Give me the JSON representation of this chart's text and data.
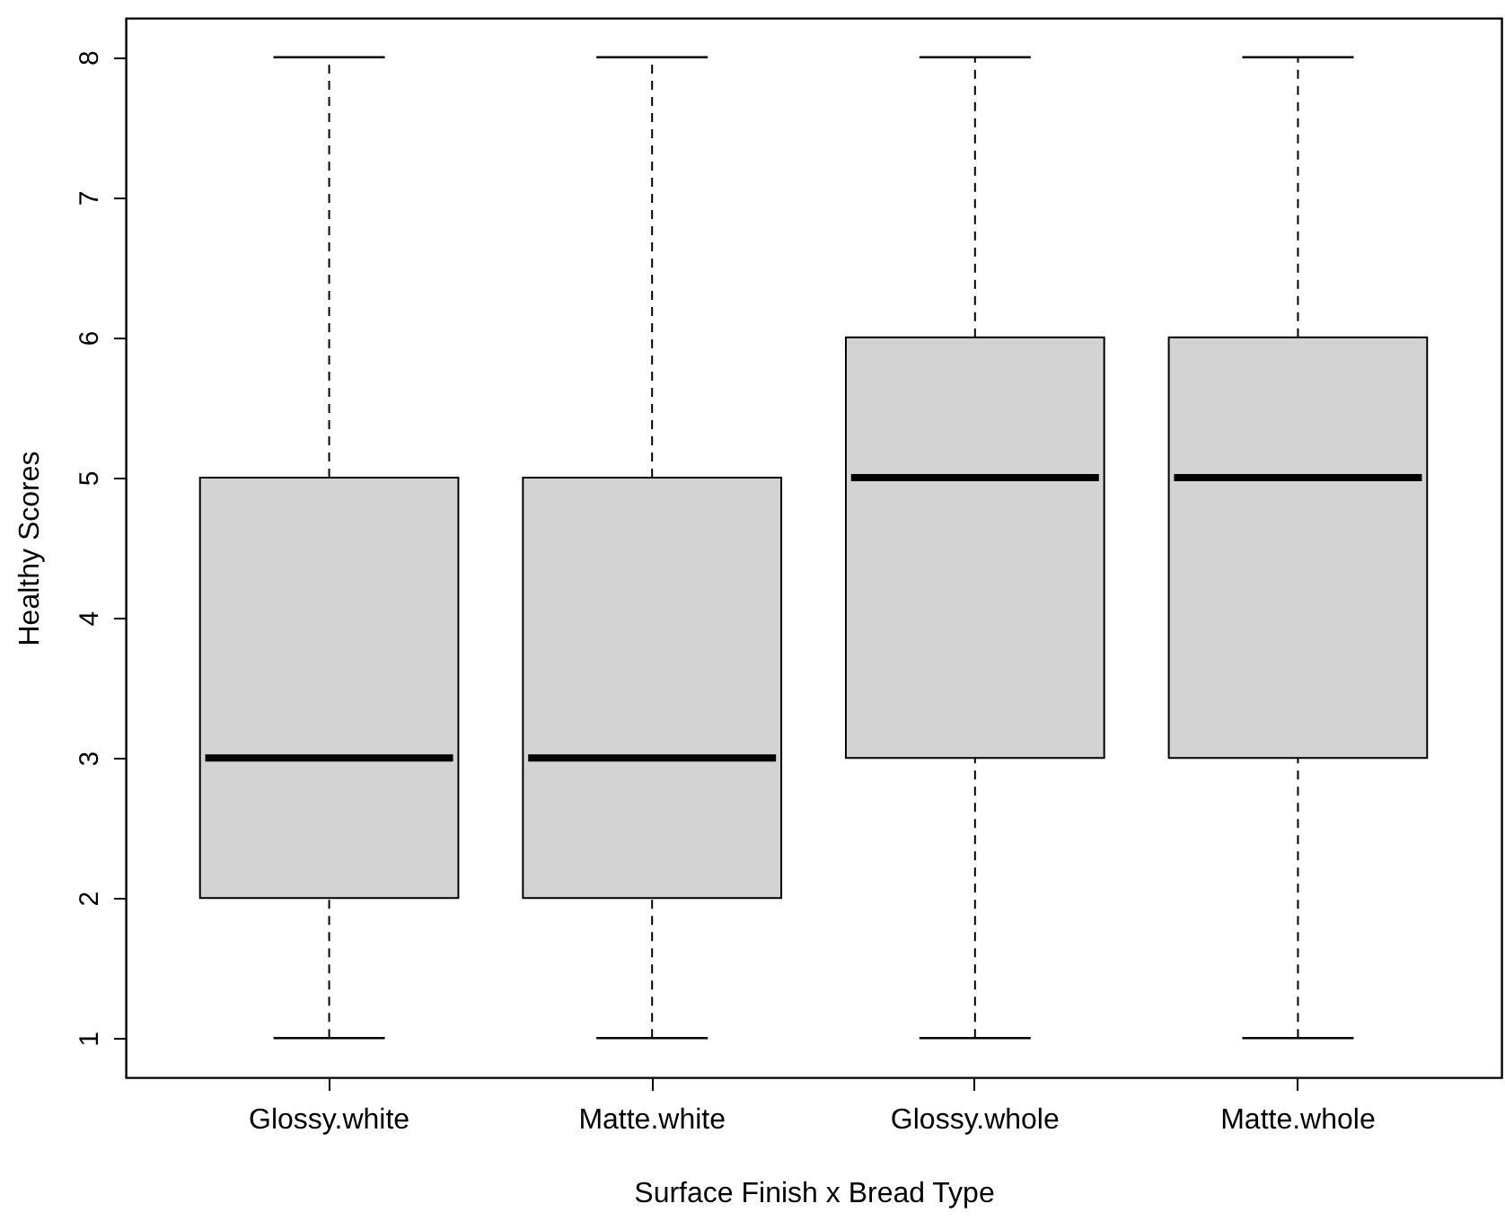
{
  "chart_data": {
    "type": "box",
    "xlabel": "Surface Finish x Bread Type",
    "ylabel": "Healthy Scores",
    "categories": [
      "Glossy.white",
      "Matte.white",
      "Glossy.whole",
      "Matte.whole"
    ],
    "color": "#d3d3d3",
    "ylim": [
      0.72,
      8.28
    ],
    "yticks": [
      1,
      2,
      3,
      4,
      5,
      6,
      7,
      8
    ],
    "boxes": [
      {
        "low": 1,
        "q1": 2,
        "median": 3,
        "q3": 5,
        "high": 8
      },
      {
        "low": 1,
        "q1": 2,
        "median": 3,
        "q3": 5,
        "high": 8
      },
      {
        "low": 1,
        "q1": 3,
        "median": 5,
        "q3": 6,
        "high": 8
      },
      {
        "low": 1,
        "q1": 3,
        "median": 5,
        "q3": 6,
        "high": 8
      }
    ]
  }
}
